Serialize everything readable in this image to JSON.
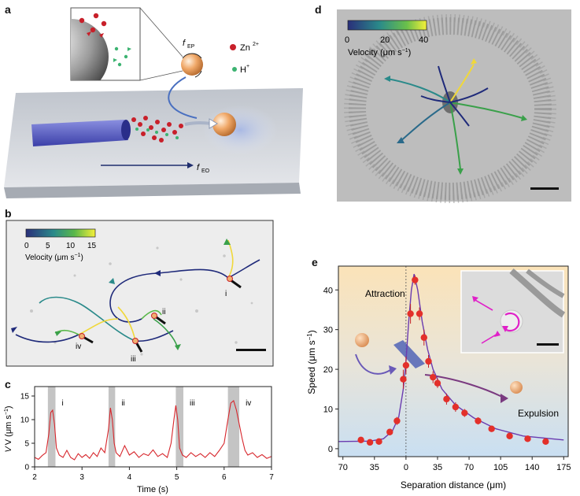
{
  "panels": {
    "a": {
      "letter": "a",
      "force_ep": "f",
      "force_ep_sub": "EP",
      "force_eo": "f",
      "force_eo_sub": "EO",
      "legend": [
        {
          "label": "Zn",
          "sup": "2+",
          "color": "#c8202a"
        },
        {
          "label": "H",
          "sup": "+",
          "color": "#3cb371"
        }
      ]
    },
    "b": {
      "letter": "b",
      "colorbar_ticks": [
        "0",
        "5",
        "10",
        "15"
      ],
      "colorbar_label": "Velocity (μm s",
      "colorbar_label_sup": "−1",
      "colorbar_label_end": ")",
      "events": [
        "i",
        "ii",
        "iii",
        "iv"
      ]
    },
    "c": {
      "letter": "c",
      "ylabel": "V (μm s",
      "ylabel_sup": "−1",
      "ylabel_end": ")",
      "xlabel": "Time (s)",
      "xticks": [
        "2",
        "3",
        "4",
        "5",
        "6",
        "7"
      ],
      "yticks": [
        "0",
        "5",
        "10",
        "15"
      ],
      "events": [
        "i",
        "ii",
        "iii",
        "iv"
      ]
    },
    "d": {
      "letter": "d",
      "colorbar_ticks": [
        "0",
        "20",
        "40"
      ],
      "colorbar_label": "Velocity (μm s",
      "colorbar_label_sup": "−1",
      "colorbar_label_end": ")"
    },
    "e": {
      "letter": "e",
      "ylabel": "Speed (μm s",
      "ylabel_sup": "−1",
      "ylabel_end": ")",
      "xlabel": "Separation distance (μm)",
      "attraction_label": "Attraction",
      "expulsion_label": "Expulsion",
      "xticks": [
        "70",
        "35",
        "0",
        "35",
        "70",
        "105",
        "140",
        "175"
      ],
      "yticks": [
        "0",
        "10",
        "20",
        "30",
        "40"
      ]
    }
  },
  "chart_data": [
    {
      "type": "line",
      "panel": "c",
      "x_range": [
        2,
        7
      ],
      "ylim": [
        0,
        17
      ],
      "series": [
        {
          "x": [
            2.0,
            2.08,
            2.16,
            2.24,
            2.3,
            2.34,
            2.38,
            2.42,
            2.46,
            2.52,
            2.6,
            2.68,
            2.76,
            2.84,
            2.92,
            3.0,
            3.08,
            3.16,
            3.24,
            3.32,
            3.4,
            3.48,
            3.56,
            3.6,
            3.64,
            3.68,
            3.72,
            3.8,
            3.9,
            4.0,
            4.1,
            4.2,
            4.3,
            4.4,
            4.5,
            4.6,
            4.7,
            4.8,
            4.88,
            4.94,
            4.98,
            5.02,
            5.06,
            5.12,
            5.2,
            5.3,
            5.4,
            5.5,
            5.6,
            5.7,
            5.8,
            5.9,
            6.0,
            6.08,
            6.14,
            6.2,
            6.26,
            6.32,
            6.38,
            6.44,
            6.5,
            6.6,
            6.7,
            6.8,
            6.9,
            7.0
          ],
          "y": [
            2,
            1.6,
            2.4,
            3,
            7,
            11.5,
            12,
            9,
            4,
            2.5,
            2,
            3.5,
            2,
            1.5,
            2.8,
            2,
            2.6,
            1.8,
            3,
            2.2,
            4,
            3,
            8,
            12.5,
            10,
            5,
            3,
            2.2,
            4.5,
            2.5,
            3.2,
            2,
            2.8,
            2.4,
            3.6,
            2.2,
            2.8,
            2,
            5,
            10,
            13,
            10,
            4,
            2.5,
            2,
            3,
            2.2,
            2.8,
            2,
            3,
            2.2,
            3.5,
            5,
            10,
            13.5,
            14,
            12,
            9,
            6,
            3.5,
            2.5,
            3,
            2,
            2.6,
            1.8,
            2.2
          ]
        }
      ],
      "highlight_spans": [
        [
          2.28,
          2.44
        ],
        [
          3.56,
          3.7
        ],
        [
          4.98,
          5.14
        ],
        [
          6.08,
          6.32
        ]
      ]
    },
    {
      "type": "scatter",
      "panel": "e",
      "x_range": [
        -75,
        180
      ],
      "ylim": [
        -2,
        46
      ],
      "series": [
        {
          "name": "data",
          "color": "#e3302a",
          "points": [
            [
              -50,
              2.2
            ],
            [
              -40,
              1.6
            ],
            [
              -30,
              1.8
            ],
            [
              -18,
              4.2
            ],
            [
              -10,
              7
            ],
            [
              -3,
              17.5
            ],
            [
              0,
              21
            ],
            [
              5,
              34
            ],
            [
              10,
              42.5
            ],
            [
              15,
              34
            ],
            [
              20,
              28
            ],
            [
              25,
              22
            ],
            [
              30,
              18
            ],
            [
              35,
              16.5
            ],
            [
              45,
              12.5
            ],
            [
              55,
              10.5
            ],
            [
              65,
              9
            ],
            [
              80,
              7
            ],
            [
              95,
              5
            ],
            [
              115,
              3.2
            ],
            [
              135,
              2.5
            ],
            [
              155,
              1.8
            ]
          ],
          "err": [
            0.6,
            0.5,
            0.5,
            0.8,
            1,
            2.4,
            2.2,
            2.5,
            1.2,
            1.6,
            2,
            1.6,
            1.5,
            1.2,
            1.4,
            1.2,
            1,
            0.9,
            0.7,
            0.6,
            0.5,
            0.5
          ]
        },
        {
          "name": "fit",
          "type": "line",
          "color": "#6a3bb0",
          "points": [
            [
              -75,
              1.8
            ],
            [
              -40,
              1.9
            ],
            [
              -25,
              2.5
            ],
            [
              -15,
              4.5
            ],
            [
              -8,
              8
            ],
            [
              -3,
              15
            ],
            [
              0,
              22
            ],
            [
              3,
              32
            ],
            [
              6,
              40
            ],
            [
              9,
              44
            ],
            [
              13,
              40
            ],
            [
              18,
              32
            ],
            [
              24,
              25
            ],
            [
              30,
              20
            ],
            [
              40,
              15
            ],
            [
              55,
              11
            ],
            [
              75,
              7.8
            ],
            [
              100,
              5
            ],
            [
              130,
              3.2
            ],
            [
              175,
              2.2
            ]
          ]
        }
      ]
    }
  ]
}
